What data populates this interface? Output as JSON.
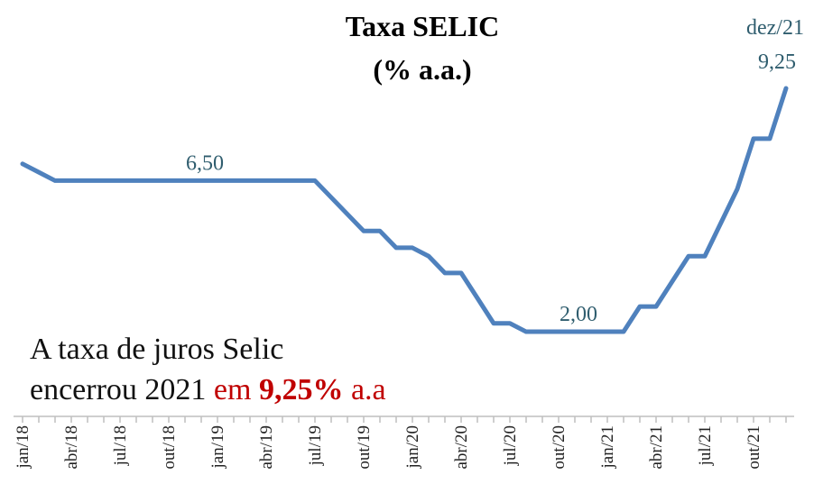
{
  "chart_data": {
    "type": "line",
    "title": "Taxa SELIC",
    "subtitle": "(% a.a.)",
    "annotation": [
      "A taxa de juros Selic",
      "encerrou 2021",
      "em",
      "9,25%",
      "a.a"
    ],
    "categories": [
      "jan/18",
      null,
      null,
      "abr/18",
      null,
      null,
      "jul/18",
      null,
      null,
      "out/18",
      null,
      null,
      "jan/19",
      null,
      null,
      "abr/19",
      null,
      null,
      "jul/19",
      null,
      null,
      "out/19",
      null,
      null,
      "jan/20",
      null,
      null,
      "abr/20",
      null,
      null,
      "jul/20",
      null,
      null,
      "out/20",
      null,
      null,
      "jan/21",
      null,
      null,
      "abr/21",
      null,
      null,
      "jul/21",
      null,
      null,
      "out/21",
      null,
      "dez/21"
    ],
    "series": [
      {
        "name": "Selic",
        "color": "#4f81bd",
        "values": [
          7.0,
          6.75,
          6.5,
          6.5,
          6.5,
          6.5,
          6.5,
          6.5,
          6.5,
          6.5,
          6.5,
          6.5,
          6.5,
          6.5,
          6.5,
          6.5,
          6.5,
          6.5,
          6.5,
          6.0,
          5.5,
          5.0,
          5.0,
          4.5,
          4.5,
          4.25,
          3.75,
          3.75,
          3.0,
          2.25,
          2.25,
          2.0,
          2.0,
          2.0,
          2.0,
          2.0,
          2.0,
          2.0,
          2.75,
          2.75,
          3.5,
          4.25,
          4.25,
          5.25,
          6.25,
          7.75,
          7.75,
          9.25
        ],
        "value_labels": [
          null,
          null,
          null,
          null,
          null,
          null,
          null,
          null,
          null,
          null,
          null,
          "6,50",
          null,
          null,
          null,
          null,
          null,
          null,
          null,
          null,
          null,
          null,
          null,
          null,
          null,
          null,
          null,
          null,
          null,
          null,
          null,
          null,
          null,
          null,
          "2,00",
          null,
          null,
          null,
          null,
          null,
          null,
          null,
          null,
          null,
          null,
          null,
          null,
          "9,25"
        ]
      }
    ],
    "ylim": [
      0.5,
      9.5
    ]
  }
}
